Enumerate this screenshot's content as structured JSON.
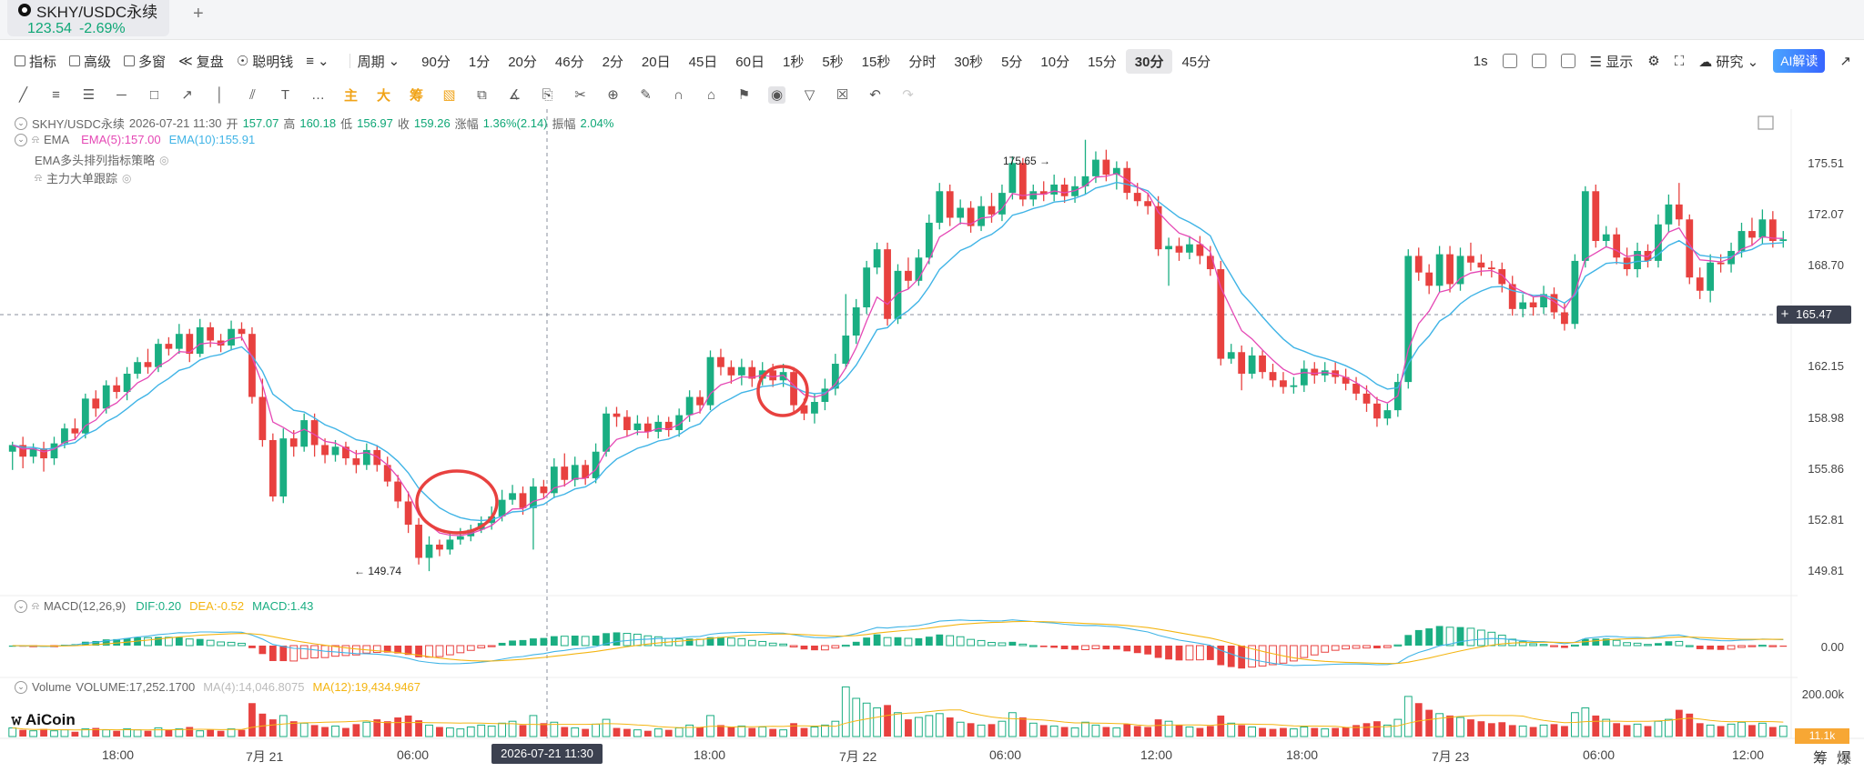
{
  "tab": {
    "symbol": "SKHY/USDC永续",
    "price": "123.54",
    "change": "-2.69%",
    "add": "+"
  },
  "toolbar": {
    "tools": [
      {
        "label": "指标",
        "icon": "indicator-icon"
      },
      {
        "label": "高级",
        "icon": "advanced-icon"
      },
      {
        "label": "多窗",
        "icon": "multi-window-icon"
      },
      {
        "label": "复盘",
        "icon": "replay-icon"
      },
      {
        "label": "聪明钱",
        "icon": "smart-money-icon"
      }
    ],
    "period_label": "周期",
    "periods": [
      "90分",
      "1分",
      "20分",
      "46分",
      "2分",
      "20日",
      "45日",
      "60日",
      "1秒",
      "5秒",
      "15秒",
      "分时",
      "30秒",
      "5分",
      "10分",
      "15分",
      "30分",
      "45分"
    ],
    "active_period": "30分",
    "right": {
      "interval": "1s",
      "display": "显示",
      "research": "研究",
      "ai": "AI解读"
    }
  },
  "legend": {
    "symbol": "SKHY/USDC永续",
    "time": "2026-07-21 11:30",
    "open_k": "开",
    "open": "157.07",
    "high_k": "高",
    "high": "160.18",
    "low_k": "低",
    "low": "156.97",
    "close_k": "收",
    "close": "159.26",
    "chg_k": "涨幅",
    "chg": "1.36%(2.14)",
    "amp_k": "振幅",
    "amp": "2.04%",
    "ema_title": "EMA",
    "ema5": "EMA(5):157.00",
    "ema10": "EMA(10):155.91",
    "strategy": "EMA多头排列指标策略",
    "tracking": "主力大单跟踪",
    "macd_title": "MACD(12,26,9)",
    "dif": "DIF:0.20",
    "dea": "DEA:-0.52",
    "macd": "MACD:1.43",
    "vol_title": "Volume",
    "vol": "VOLUME:17,252.1700",
    "ma4": "MA(4):14,046.8075",
    "ma12": "MA(12):19,434.9467"
  },
  "axis": {
    "price_ticks": [
      "175.51",
      "172.07",
      "168.70",
      "165.47",
      "162.15",
      "158.98",
      "155.86",
      "152.81",
      "149.81"
    ],
    "current_price": "165.47",
    "macd_zero": "0.00",
    "vol_top": "200.00k",
    "vol_current": "11.1k",
    "time_ticks": [
      "18:00",
      "7月 21",
      "06:00",
      "18:00",
      "7月 22",
      "06:00",
      "12:00",
      "18:00",
      "7月 23",
      "06:00",
      "12:00"
    ],
    "crosshair_time": "2026-07-21 11:30"
  },
  "annotations": {
    "high": "175.65",
    "low": "149.74"
  },
  "brand": "AiCoin",
  "bottom_right": [
    "筹",
    "爆"
  ],
  "colors": {
    "up": "#1aae82",
    "down": "#e8413f",
    "ema5": "#e548b5",
    "ema10": "#40b4e6",
    "dea": "#f4b512",
    "accent": "#3765ff"
  },
  "chart_data": {
    "type": "candlestick",
    "ylim": [
      148.5,
      177.0
    ],
    "candles": [
      [
        156.9,
        157.3,
        155.8,
        157.5
      ],
      [
        157.3,
        156.6,
        155.9,
        157.8
      ],
      [
        156.6,
        157.1,
        156.2,
        157.4
      ],
      [
        157.1,
        156.5,
        155.7,
        157.5
      ],
      [
        156.5,
        157.4,
        156.1,
        157.8
      ],
      [
        157.4,
        158.3,
        157.1,
        158.6
      ],
      [
        158.3,
        158.0,
        157.6,
        158.9
      ],
      [
        158.0,
        160.1,
        157.7,
        160.4
      ],
      [
        160.1,
        159.5,
        159.0,
        160.6
      ],
      [
        159.5,
        160.9,
        159.2,
        161.2
      ],
      [
        160.9,
        160.5,
        160.1,
        161.4
      ],
      [
        160.5,
        161.6,
        160.0,
        162.0
      ],
      [
        161.6,
        162.3,
        161.3,
        162.6
      ],
      [
        162.3,
        162.0,
        161.6,
        163.1
      ],
      [
        162.0,
        163.4,
        161.7,
        163.7
      ],
      [
        163.4,
        163.1,
        162.7,
        163.8
      ],
      [
        163.1,
        164.0,
        162.8,
        164.6
      ],
      [
        164.0,
        162.8,
        162.3,
        164.3
      ],
      [
        162.8,
        164.4,
        162.6,
        164.9
      ],
      [
        164.4,
        163.6,
        163.2,
        164.7
      ],
      [
        163.6,
        163.3,
        162.9,
        164.0
      ],
      [
        163.3,
        164.3,
        163.0,
        164.8
      ],
      [
        164.3,
        164.0,
        163.6,
        164.7
      ],
      [
        164.0,
        160.2,
        159.8,
        164.4
      ],
      [
        160.2,
        157.6,
        157.2,
        161.3
      ],
      [
        157.6,
        154.2,
        153.9,
        158.0
      ],
      [
        154.2,
        157.7,
        153.8,
        158.3
      ],
      [
        157.7,
        157.2,
        156.6,
        158.2
      ],
      [
        157.2,
        158.8,
        156.9,
        159.2
      ],
      [
        158.8,
        157.3,
        156.6,
        159.2
      ],
      [
        157.3,
        156.7,
        156.2,
        157.7
      ],
      [
        156.7,
        157.2,
        156.3,
        157.6
      ],
      [
        157.2,
        156.5,
        156.1,
        157.5
      ],
      [
        156.5,
        156.1,
        155.6,
        157.0
      ],
      [
        156.1,
        157.0,
        155.8,
        157.4
      ],
      [
        157.0,
        156.1,
        155.7,
        157.3
      ],
      [
        156.1,
        155.1,
        154.8,
        156.6
      ],
      [
        155.1,
        153.9,
        153.5,
        155.5
      ],
      [
        153.9,
        152.5,
        152.0,
        154.5
      ],
      [
        152.5,
        150.5,
        150.1,
        152.9
      ],
      [
        150.5,
        151.3,
        149.7,
        151.8
      ],
      [
        151.3,
        151.0,
        150.6,
        151.6
      ],
      [
        151.0,
        151.6,
        150.7,
        152.0
      ],
      [
        151.6,
        151.8,
        151.3,
        152.3
      ],
      [
        151.8,
        152.2,
        151.5,
        152.5
      ],
      [
        152.2,
        152.6,
        152.0,
        153.0
      ],
      [
        152.6,
        153.0,
        152.2,
        153.6
      ],
      [
        153.0,
        154.0,
        152.7,
        154.6
      ],
      [
        154.0,
        154.4,
        153.7,
        154.9
      ],
      [
        154.4,
        153.5,
        153.1,
        154.8
      ],
      [
        153.5,
        154.8,
        151.0,
        155.3
      ],
      [
        154.8,
        154.4,
        154.1,
        155.2
      ],
      [
        154.4,
        156.0,
        154.1,
        156.5
      ],
      [
        156.0,
        155.2,
        154.8,
        156.8
      ],
      [
        155.2,
        156.1,
        154.8,
        156.6
      ],
      [
        156.1,
        155.3,
        154.9,
        156.4
      ],
      [
        155.3,
        156.9,
        155.0,
        157.4
      ],
      [
        156.9,
        159.2,
        156.6,
        159.6
      ],
      [
        159.2,
        159.0,
        158.4,
        159.6
      ],
      [
        159.0,
        158.2,
        157.8,
        159.4
      ],
      [
        158.2,
        158.6,
        157.9,
        159.1
      ],
      [
        158.6,
        158.1,
        157.7,
        159.0
      ],
      [
        158.1,
        158.7,
        157.7,
        159.1
      ],
      [
        158.7,
        158.2,
        157.8,
        159.0
      ],
      [
        158.2,
        159.1,
        157.8,
        159.5
      ],
      [
        159.1,
        160.2,
        158.7,
        160.6
      ],
      [
        160.2,
        159.7,
        159.2,
        160.6
      ],
      [
        159.7,
        162.6,
        159.4,
        163.0
      ],
      [
        162.6,
        162.0,
        161.5,
        163.1
      ],
      [
        162.0,
        161.5,
        161.0,
        162.4
      ],
      [
        161.5,
        162.0,
        160.9,
        162.5
      ],
      [
        162.0,
        161.3,
        160.8,
        162.4
      ],
      [
        161.3,
        161.8,
        160.9,
        162.3
      ],
      [
        161.8,
        161.2,
        160.8,
        162.2
      ],
      [
        161.2,
        161.7,
        160.8,
        162.2
      ],
      [
        161.7,
        159.7,
        159.2,
        162.0
      ],
      [
        159.7,
        159.2,
        158.8,
        160.1
      ],
      [
        159.2,
        159.9,
        158.6,
        160.4
      ],
      [
        159.9,
        160.7,
        159.4,
        161.3
      ],
      [
        160.7,
        162.2,
        160.3,
        162.8
      ],
      [
        162.2,
        163.9,
        161.9,
        166.4
      ],
      [
        163.9,
        165.6,
        163.4,
        166.1
      ],
      [
        165.6,
        168.0,
        165.2,
        168.4
      ],
      [
        168.0,
        169.1,
        167.6,
        169.5
      ],
      [
        169.1,
        164.9,
        164.5,
        169.5
      ],
      [
        164.9,
        167.8,
        164.6,
        168.2
      ],
      [
        167.8,
        167.2,
        166.7,
        168.6
      ],
      [
        167.2,
        168.6,
        166.9,
        169.1
      ],
      [
        168.6,
        170.7,
        168.2,
        171.2
      ],
      [
        170.7,
        172.6,
        170.3,
        173.1
      ],
      [
        172.6,
        171.0,
        170.5,
        173.0
      ],
      [
        171.0,
        171.6,
        170.6,
        172.1
      ],
      [
        171.6,
        170.5,
        170.1,
        172.0
      ],
      [
        170.5,
        171.7,
        170.2,
        172.3
      ],
      [
        171.7,
        171.2,
        170.7,
        172.5
      ],
      [
        171.2,
        172.5,
        170.8,
        173.0
      ],
      [
        172.5,
        174.3,
        172.1,
        174.7
      ],
      [
        174.3,
        172.1,
        171.7,
        174.6
      ],
      [
        172.1,
        172.6,
        171.7,
        173.0
      ],
      [
        172.6,
        172.4,
        172.0,
        173.2
      ],
      [
        172.4,
        173.0,
        172.0,
        173.6
      ],
      [
        173.0,
        172.3,
        171.9,
        173.4
      ],
      [
        172.3,
        172.9,
        171.9,
        173.5
      ],
      [
        172.9,
        173.5,
        172.4,
        175.7
      ],
      [
        173.5,
        174.5,
        173.1,
        175.0
      ],
      [
        174.5,
        173.6,
        173.2,
        175.1
      ],
      [
        173.6,
        174.0,
        172.7,
        174.4
      ],
      [
        174.0,
        172.5,
        172.1,
        174.4
      ],
      [
        172.5,
        172.0,
        171.7,
        173.1
      ],
      [
        172.0,
        171.7,
        171.2,
        172.5
      ],
      [
        171.7,
        169.1,
        168.7,
        172.3
      ],
      [
        169.1,
        169.3,
        166.9,
        169.8
      ],
      [
        169.3,
        168.9,
        168.4,
        169.8
      ],
      [
        168.9,
        169.4,
        168.5,
        169.9
      ],
      [
        169.4,
        168.7,
        168.2,
        169.9
      ],
      [
        168.7,
        167.9,
        167.5,
        169.3
      ],
      [
        167.9,
        162.5,
        162.1,
        168.4
      ],
      [
        162.5,
        162.9,
        162.2,
        163.4
      ],
      [
        162.9,
        161.6,
        160.6,
        163.3
      ],
      [
        161.6,
        162.7,
        161.3,
        163.2
      ],
      [
        162.7,
        161.7,
        161.3,
        163.0
      ],
      [
        161.7,
        161.2,
        160.8,
        162.2
      ],
      [
        161.2,
        160.8,
        160.4,
        161.7
      ],
      [
        160.8,
        160.9,
        160.4,
        161.4
      ],
      [
        160.9,
        161.9,
        160.5,
        162.4
      ],
      [
        161.9,
        161.5,
        161.0,
        162.3
      ],
      [
        161.5,
        161.8,
        161.1,
        162.3
      ],
      [
        161.8,
        161.4,
        161.0,
        162.3
      ],
      [
        161.4,
        161.0,
        160.6,
        161.9
      ],
      [
        161.0,
        160.4,
        160.0,
        161.4
      ],
      [
        160.4,
        159.8,
        159.3,
        160.9
      ],
      [
        159.8,
        158.9,
        158.4,
        160.2
      ],
      [
        158.9,
        159.4,
        158.5,
        159.8
      ],
      [
        159.4,
        161.1,
        159.0,
        161.6
      ],
      [
        161.1,
        168.7,
        160.7,
        169.1
      ],
      [
        168.7,
        167.7,
        167.2,
        169.2
      ],
      [
        167.7,
        166.9,
        166.4,
        168.2
      ],
      [
        166.9,
        168.8,
        166.5,
        169.3
      ],
      [
        168.8,
        167.0,
        166.5,
        169.3
      ],
      [
        167.0,
        168.7,
        166.6,
        169.2
      ],
      [
        168.7,
        168.3,
        167.8,
        169.5
      ],
      [
        168.3,
        168.0,
        167.5,
        168.8
      ],
      [
        168.0,
        167.9,
        167.4,
        168.4
      ],
      [
        167.9,
        167.0,
        166.5,
        168.3
      ],
      [
        167.0,
        165.5,
        165.1,
        167.5
      ],
      [
        165.5,
        165.9,
        165.0,
        166.4
      ],
      [
        165.9,
        165.6,
        165.1,
        166.2
      ],
      [
        165.6,
        166.4,
        165.2,
        166.9
      ],
      [
        166.4,
        165.3,
        164.9,
        166.8
      ],
      [
        165.3,
        164.6,
        164.2,
        165.9
      ],
      [
        164.6,
        168.4,
        164.3,
        168.8
      ],
      [
        168.4,
        172.6,
        168.0,
        172.9
      ],
      [
        172.6,
        169.6,
        169.2,
        173.0
      ],
      [
        169.6,
        170.0,
        169.2,
        170.5
      ],
      [
        170.0,
        168.6,
        168.2,
        170.4
      ],
      [
        168.6,
        167.9,
        167.5,
        169.2
      ],
      [
        167.9,
        169.0,
        167.4,
        169.5
      ],
      [
        169.0,
        168.4,
        168.0,
        169.4
      ],
      [
        168.4,
        170.6,
        168.0,
        171.2
      ],
      [
        170.6,
        171.8,
        170.1,
        172.4
      ],
      [
        171.8,
        170.9,
        170.5,
        173.1
      ],
      [
        170.9,
        167.4,
        167.0,
        171.2
      ],
      [
        167.4,
        166.6,
        166.1,
        168.0
      ],
      [
        166.6,
        168.3,
        165.9,
        168.8
      ],
      [
        168.3,
        168.2,
        167.7,
        168.8
      ],
      [
        168.2,
        169.0,
        167.7,
        169.5
      ],
      [
        169.0,
        170.2,
        168.6,
        170.7
      ],
      [
        170.2,
        169.8,
        169.3,
        171.0
      ],
      [
        169.8,
        170.9,
        169.4,
        171.5
      ],
      [
        170.9,
        169.6,
        169.2,
        171.4
      ],
      [
        169.6,
        169.7,
        169.2,
        170.2
      ]
    ],
    "volumes": [
      9,
      7,
      6,
      8,
      6,
      7,
      5,
      8,
      9,
      7,
      6,
      8,
      7,
      6,
      9,
      7,
      8,
      10,
      6,
      7,
      6,
      8,
      7,
      35,
      24,
      18,
      22,
      16,
      14,
      12,
      10,
      11,
      9,
      13,
      15,
      18,
      16,
      20,
      22,
      17,
      12,
      10,
      9,
      8,
      10,
      12,
      11,
      14,
      16,
      12,
      22,
      14,
      15,
      10,
      9,
      8,
      13,
      18,
      9,
      8,
      7,
      6,
      8,
      7,
      9,
      12,
      10,
      22,
      12,
      10,
      11,
      9,
      10,
      8,
      7,
      14,
      9,
      10,
      12,
      16,
      52,
      40,
      35,
      30,
      33,
      25,
      18,
      20,
      22,
      24,
      20,
      15,
      14,
      12,
      13,
      16,
      25,
      20,
      14,
      12,
      11,
      10,
      9,
      15,
      12,
      10,
      9,
      13,
      11,
      10,
      18,
      16,
      12,
      10,
      9,
      11,
      22,
      14,
      12,
      10,
      9,
      8,
      9,
      8,
      10,
      9,
      8,
      9,
      10,
      12,
      14,
      16,
      12,
      18,
      42,
      35,
      28,
      24,
      22,
      20,
      18,
      16,
      14,
      15,
      12,
      11,
      10,
      12,
      13,
      11,
      25,
      30,
      22,
      18,
      14,
      12,
      13,
      11,
      16,
      18,
      28,
      24,
      14,
      12,
      11,
      13,
      15,
      12,
      14,
      10,
      11
    ],
    "ema5_last": 157.0,
    "ema10_last": 155.91
  }
}
